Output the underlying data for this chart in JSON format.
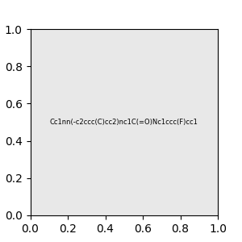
{
  "smiles": "Cc1nn(-c2ccc(C)cc2)nc1C(=O)Nc1ccc(F)cc1",
  "img_size": [
    300,
    300
  ],
  "background_color": "#e8e8e8",
  "atom_colors": {
    "N": [
      0,
      0,
      255
    ],
    "O": [
      255,
      0,
      0
    ],
    "F": [
      255,
      0,
      255
    ]
  }
}
